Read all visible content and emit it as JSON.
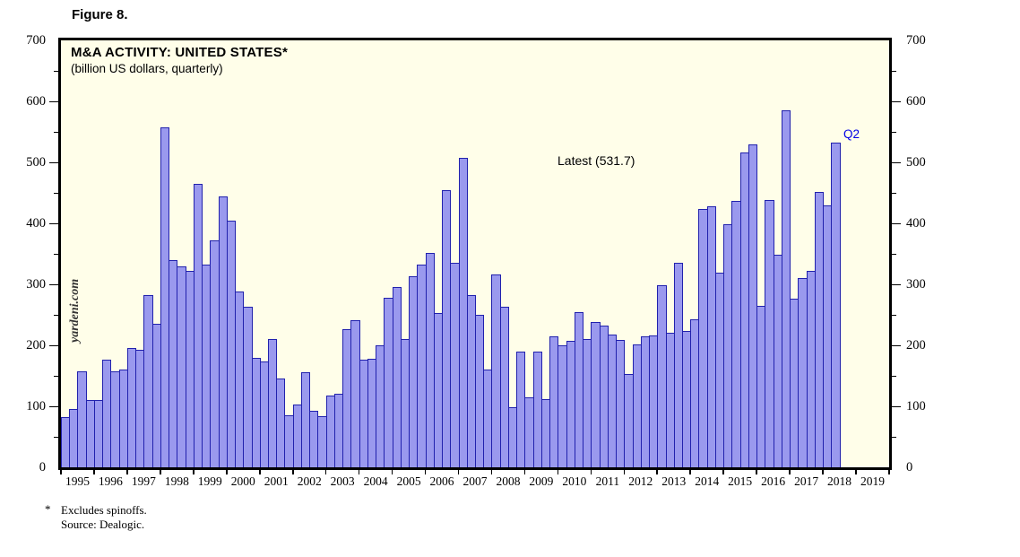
{
  "figure_label": "Figure 8.",
  "footnote": {
    "marker": "*",
    "line1": "Excludes spinoffs.",
    "line2": "Source: Dealogic."
  },
  "colors": {
    "plot_background": "#fffee9",
    "bar_fill": "#9a99ee",
    "bar_border": "#2121ad",
    "frame": "#000000",
    "annotation_blue": "#0000e6",
    "text": "#000000"
  },
  "chart_data": {
    "type": "bar",
    "title": "M&A ACTIVITY: UNITED STATES*",
    "subtitle": "(billion US dollars, quarterly)",
    "ylabel": "billion US dollars",
    "xlabel": "",
    "frequency": "quarterly",
    "grid": "off",
    "legend": "none",
    "tick_label_sides": "both",
    "ylim": [
      0,
      700
    ],
    "y_major_ticks": [
      0,
      100,
      200,
      300,
      400,
      500,
      600,
      700
    ],
    "y_minor_tick_step": 50,
    "x_year_labels": [
      "1995",
      "1996",
      "1997",
      "1998",
      "1999",
      "2000",
      "2001",
      "2002",
      "2003",
      "2004",
      "2005",
      "2006",
      "2007",
      "2008",
      "2009",
      "2010",
      "2011",
      "2012",
      "2013",
      "2014",
      "2015",
      "2016",
      "2017",
      "2018",
      "2019"
    ],
    "watermark": "yardeni.com",
    "latest_label": "Latest (531.7)",
    "latest_value": 531.7,
    "last_bar_annotation": "Q2",
    "series": [
      {
        "name": "US M&A deal value (billion US dollars)",
        "values_by_year": [
          {
            "year": 1995,
            "quarters": [
              82,
              95,
              158,
              110
            ]
          },
          {
            "year": 1996,
            "quarters": [
              110,
              177,
              158,
              160
            ]
          },
          {
            "year": 1997,
            "quarters": [
              195,
              192,
              282,
              236
            ]
          },
          {
            "year": 1998,
            "quarters": [
              558,
              340,
              330,
              322
            ]
          },
          {
            "year": 1999,
            "quarters": [
              465,
              333,
              372,
              444
            ]
          },
          {
            "year": 2000,
            "quarters": [
              405,
              288,
              263,
              180
            ]
          },
          {
            "year": 2001,
            "quarters": [
              174,
              211,
              145,
              86
            ]
          },
          {
            "year": 2002,
            "quarters": [
              103,
              156,
              92,
              84
            ]
          },
          {
            "year": 2003,
            "quarters": [
              117,
              121,
              226,
              241
            ]
          },
          {
            "year": 2004,
            "quarters": [
              177,
              178,
              200,
              278
            ]
          },
          {
            "year": 2005,
            "quarters": [
              296,
              210,
              313,
              332
            ]
          },
          {
            "year": 2006,
            "quarters": [
              352,
              253,
              455,
              336
            ]
          },
          {
            "year": 2007,
            "quarters": [
              507,
              282,
              250,
              160
            ]
          },
          {
            "year": 2008,
            "quarters": [
              316,
              263,
              99,
              190
            ]
          },
          {
            "year": 2009,
            "quarters": [
              114,
              190,
              112,
              215
            ]
          },
          {
            "year": 2010,
            "quarters": [
              200,
              207,
              254,
              211
            ]
          },
          {
            "year": 2011,
            "quarters": [
              238,
              233,
              218,
              209
            ]
          },
          {
            "year": 2012,
            "quarters": [
              153,
              202,
              214,
              216
            ]
          },
          {
            "year": 2013,
            "quarters": [
              299,
              221,
              336,
              224
            ]
          },
          {
            "year": 2014,
            "quarters": [
              242,
              423,
              428,
              319
            ]
          },
          {
            "year": 2015,
            "quarters": [
              398,
              437,
              516,
              530
            ]
          },
          {
            "year": 2016,
            "quarters": [
              265,
              438,
              349,
              585
            ]
          },
          {
            "year": 2017,
            "quarters": [
              276,
              310,
              322,
              451
            ]
          },
          {
            "year": 2018,
            "quarters": [
              429,
              531.7
            ]
          }
        ]
      }
    ]
  }
}
